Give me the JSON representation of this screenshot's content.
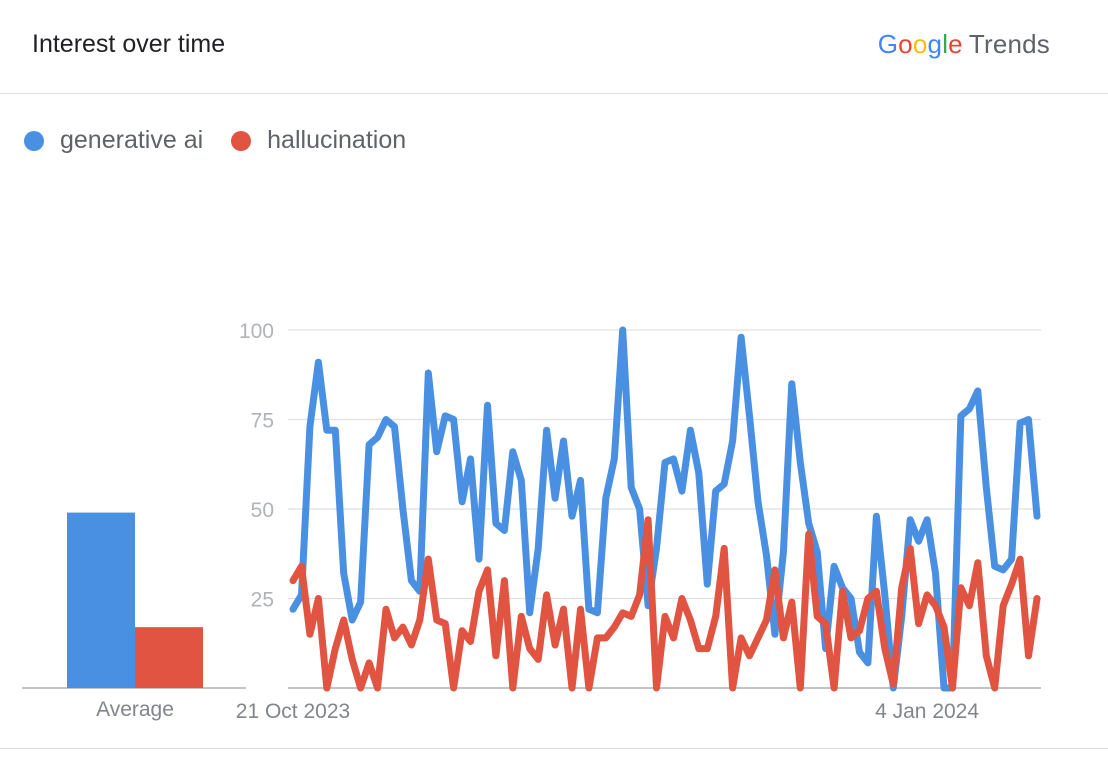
{
  "header": {
    "title": "Interest over time",
    "brand_google": "Google",
    "brand_trends": "Trends"
  },
  "legend": [
    {
      "label": "generative ai",
      "color": "#4a90e2"
    },
    {
      "label": "hallucination",
      "color": "#e05441"
    }
  ],
  "icons": {
    "brand": "google-trends-logo"
  },
  "chart_data": [
    {
      "type": "bar",
      "categories": [
        "Average"
      ],
      "series": [
        {
          "name": "generative ai",
          "values": [
            49
          ],
          "color": "#4a90e2"
        },
        {
          "name": "hallucination",
          "values": [
            17
          ],
          "color": "#e05441"
        }
      ],
      "ylim": [
        0,
        100
      ]
    },
    {
      "type": "line",
      "ylim": [
        0,
        100
      ],
      "yticks": [
        25,
        50,
        75,
        100
      ],
      "grid": true,
      "x_tick_labels": [
        "21 Oct 2023",
        "4 Jan 2024"
      ],
      "series": [
        {
          "name": "generative ai",
          "color": "#4a90e2",
          "values": [
            22,
            26,
            73,
            91,
            72,
            72,
            32,
            19,
            24,
            68,
            70,
            75,
            73,
            50,
            30,
            27,
            88,
            66,
            76,
            75,
            52,
            64,
            36,
            79,
            46,
            44,
            66,
            58,
            21,
            39,
            72,
            53,
            69,
            48,
            58,
            22,
            21,
            53,
            64,
            100,
            56,
            50,
            23,
            39,
            63,
            64,
            55,
            72,
            60,
            29,
            55,
            57,
            69,
            98,
            76,
            52,
            37,
            15,
            38,
            85,
            63,
            46,
            38,
            11,
            34,
            28,
            25,
            10,
            7,
            48,
            26,
            0,
            20,
            47,
            41,
            47,
            32,
            0,
            0,
            76,
            78,
            83,
            56,
            34,
            33,
            36,
            74,
            75,
            48
          ],
          "annotation": "series runs 21 Oct 2023 to ~end Jan 2024 (about 89 points)"
        },
        {
          "name": "hallucination",
          "color": "#e05441",
          "values": [
            30,
            34,
            15,
            25,
            0,
            11,
            19,
            8,
            0,
            7,
            0,
            22,
            14,
            17,
            12,
            19,
            36,
            19,
            18,
            0,
            16,
            13,
            27,
            33,
            9,
            30,
            0,
            20,
            11,
            8,
            26,
            12,
            22,
            0,
            22,
            0,
            14,
            14,
            17,
            21,
            20,
            26,
            47,
            0,
            20,
            14,
            25,
            19,
            11,
            11,
            20,
            39,
            0,
            14,
            9,
            14,
            19,
            33,
            14,
            24,
            0,
            43,
            20,
            18,
            0,
            27,
            14,
            16,
            25,
            27,
            11,
            1,
            28,
            39,
            18,
            26,
            23,
            17,
            0,
            28,
            23,
            35,
            9,
            0,
            23,
            29,
            36,
            9,
            25
          ]
        }
      ]
    }
  ]
}
